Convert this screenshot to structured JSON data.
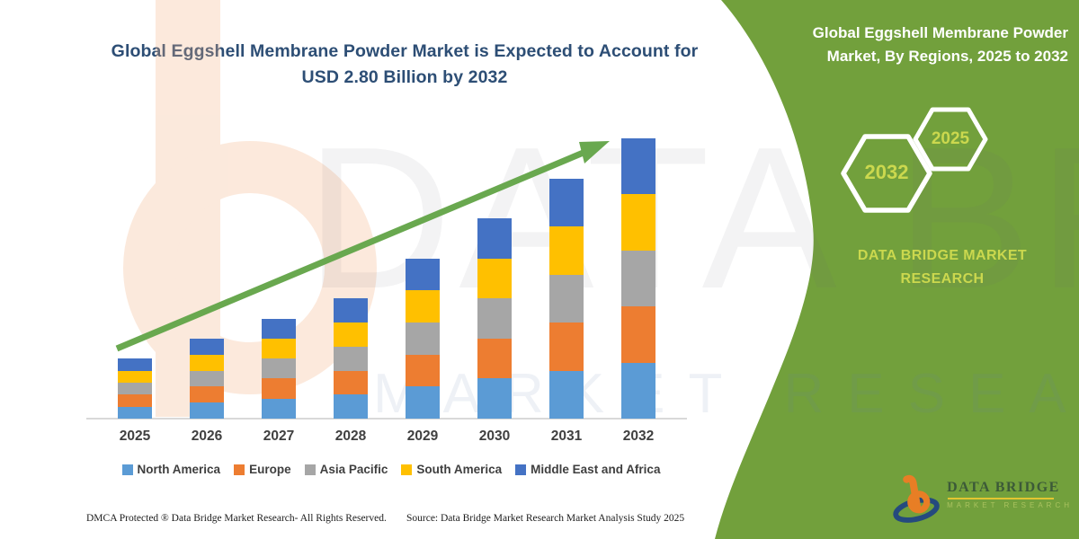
{
  "header": {
    "title_line1": "Global Eggshell Membrane Powder Market is Expected to Account for",
    "title_line2": "USD 2.80 Billion by 2032"
  },
  "side_panel": {
    "panel_color": "#72A03C",
    "accent_text_color": "#CBD84E",
    "title_line1": "Global Eggshell Membrane Powder",
    "title_line2": "Market, By Regions, 2025 to 2032",
    "badge_back_year": "2032",
    "badge_front_year": "2025",
    "brand_line1": "DATA BRIDGE MARKET",
    "brand_line2": "RESEARCH"
  },
  "chart_data": {
    "type": "bar",
    "stacked": true,
    "title": "Global Eggshell Membrane Powder Market is Expected to Account for USD 2.80 Billion by 2032",
    "unit": "USD Billion",
    "categories": [
      "2025",
      "2026",
      "2027",
      "2028",
      "2029",
      "2030",
      "2031",
      "2032"
    ],
    "totals": [
      0.6,
      0.8,
      1.0,
      1.2,
      1.6,
      2.0,
      2.4,
      2.8
    ],
    "series": [
      {
        "name": "North America",
        "color": "#5B9BD5",
        "values": [
          0.12,
          0.16,
          0.2,
          0.24,
          0.32,
          0.4,
          0.48,
          0.56
        ]
      },
      {
        "name": "Europe",
        "color": "#ED7D31",
        "values": [
          0.12,
          0.16,
          0.2,
          0.24,
          0.32,
          0.4,
          0.48,
          0.56
        ]
      },
      {
        "name": "Asia Pacific",
        "color": "#A6A6A6",
        "values": [
          0.12,
          0.16,
          0.2,
          0.24,
          0.32,
          0.4,
          0.48,
          0.56
        ]
      },
      {
        "name": "South America",
        "color": "#FFC000",
        "values": [
          0.12,
          0.16,
          0.2,
          0.24,
          0.32,
          0.4,
          0.48,
          0.56
        ]
      },
      {
        "name": "Middle East and Africa",
        "color": "#4472C4",
        "values": [
          0.12,
          0.16,
          0.2,
          0.24,
          0.32,
          0.4,
          0.48,
          0.56
        ]
      }
    ],
    "ylim": [
      0,
      2.9
    ],
    "grid": false,
    "legend_position": "bottom",
    "annotations": {
      "trend_arrow": true,
      "arrow_color": "#69A84F"
    }
  },
  "watermark": {
    "big_text": "DATA BRIDGE",
    "spaced_text": "MARKET RESEARCH",
    "logo_b_color": "#F4B183"
  },
  "logo": {
    "name": "DATA BRIDGE",
    "subtitle": "MARKET RESEARCH"
  },
  "footer": {
    "dmca": "DMCA Protected ® Data Bridge Market Research- All Rights Reserved.",
    "source": "Source: Data Bridge Market Research Market Analysis Study 2025"
  }
}
